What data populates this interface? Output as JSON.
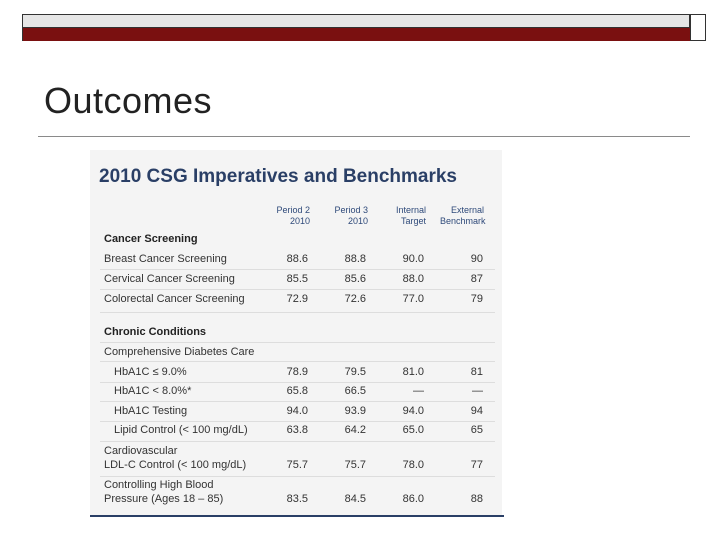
{
  "slide": {
    "title": "Outcomes"
  },
  "table": {
    "heading": "2010 CSG Imperatives and Benchmarks",
    "columns": [
      {
        "line1": "Period 2",
        "line2": "2010"
      },
      {
        "line1": "Period 3",
        "line2": "2010"
      },
      {
        "line1": "Internal",
        "line2": "Target"
      },
      {
        "line1": "External",
        "line2": "Benchmark"
      }
    ],
    "sections": {
      "cancer": "Cancer Screening",
      "chronic": "Chronic Conditions"
    },
    "subsection": "Comprehensive Diabetes Care",
    "rows": [
      {
        "label": "Breast Cancer Screening",
        "v1": "88.6",
        "v2": "88.8",
        "v3": "90.0",
        "v4": "90"
      },
      {
        "label": "Cervical Cancer Screening",
        "v1": "85.5",
        "v2": "85.6",
        "v3": "88.0",
        "v4": "87"
      },
      {
        "label": "Colorectal Cancer Screening",
        "v1": "72.9",
        "v2": "72.6",
        "v3": "77.0",
        "v4": "79"
      },
      {
        "label": "HbA1C ≤ 9.0%",
        "v1": "78.9",
        "v2": "79.5",
        "v3": "81.0",
        "v4": "81"
      },
      {
        "label": "HbA1C < 8.0%*",
        "v1": "65.8",
        "v2": "66.5",
        "v3": "—",
        "v4": "—"
      },
      {
        "label": "HbA1C Testing",
        "v1": "94.0",
        "v2": "93.9",
        "v3": "94.0",
        "v4": "94"
      },
      {
        "label": "Lipid Control (< 100 mg/dL)",
        "v1": "63.8",
        "v2": "64.2",
        "v3": "65.0",
        "v4": "65"
      },
      {
        "label": "Cardiovascular",
        "label2": "LDL-C Control (< 100 mg/dL)",
        "v1": "75.7",
        "v2": "75.7",
        "v3": "78.0",
        "v4": "77"
      },
      {
        "label": "Controlling High Blood",
        "label2": "Pressure (Ages 18 – 85)",
        "v1": "83.5",
        "v2": "84.5",
        "v3": "86.0",
        "v4": "88"
      }
    ]
  }
}
